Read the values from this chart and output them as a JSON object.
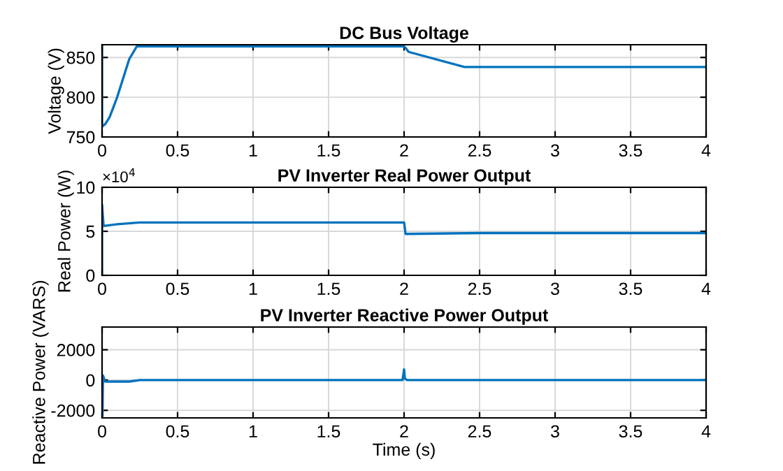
{
  "chart_data": [
    {
      "type": "line",
      "title": "DC Bus Voltage",
      "ylabel": "Voltage (V)",
      "x": [
        0,
        0,
        0.02,
        0.05,
        0.1,
        0.15,
        0.18,
        0.23,
        1.0,
        2.0,
        2.01,
        2.03,
        2.4,
        3.0,
        4.0
      ],
      "series": [
        {
          "color": "#0072bd",
          "values": [
            864,
            763,
            766,
            775,
            800,
            830,
            848,
            864,
            864,
            864,
            862,
            857,
            838,
            838,
            838
          ]
        }
      ],
      "xlim": [
        0,
        4
      ],
      "xticks": [
        0,
        0.5,
        1,
        1.5,
        2,
        2.5,
        3,
        3.5,
        4
      ],
      "ylim": [
        750,
        866
      ],
      "yticks": [
        750,
        800,
        850
      ],
      "grid": true,
      "line_style": "solid"
    },
    {
      "type": "line",
      "title": "PV Inverter Real Power Output",
      "ylabel": "Real Power (W)",
      "annotations": [
        "×10$^{4}$"
      ],
      "x": [
        0,
        0,
        0.01,
        0.1,
        0.25,
        1.0,
        2.0,
        2.01,
        2.5,
        3.5,
        4.0
      ],
      "series": [
        {
          "color": "#0072bd",
          "values": [
            0,
            8,
            5.6,
            5.8,
            6,
            6,
            6,
            4.7,
            4.8,
            4.8,
            4.8
          ]
        }
      ],
      "xlim": [
        0,
        4
      ],
      "xticks": [
        0,
        0.5,
        1,
        1.5,
        2,
        2.5,
        3,
        3.5,
        4
      ],
      "ylim": [
        0,
        10
      ],
      "yticks": [
        0,
        5,
        10
      ],
      "grid": true,
      "line_style": "solid"
    },
    {
      "type": "line",
      "title": "PV Inverter Reactive Power Output",
      "ylabel": "Reactive Power (VARS)",
      "xlabel": "Time (s)",
      "x": [
        0,
        0.003,
        0.006,
        0.02,
        0.1,
        0.18,
        0.25,
        1.0,
        1.99,
        2.0,
        2.005,
        2.02,
        3.0,
        4.0
      ],
      "series": [
        {
          "color": "#0072bd",
          "values": [
            0,
            -2400,
            300,
            -100,
            -100,
            -100,
            0,
            0,
            0,
            700,
            100,
            0,
            0,
            0
          ]
        }
      ],
      "xlim": [
        0,
        4
      ],
      "xticks": [
        0,
        0.5,
        1,
        1.5,
        2,
        2.5,
        3,
        3.5,
        4
      ],
      "ylim": [
        -2500,
        3500
      ],
      "yticks": [
        -2000,
        0,
        2000
      ],
      "grid": true,
      "line_style": "solid"
    }
  ]
}
